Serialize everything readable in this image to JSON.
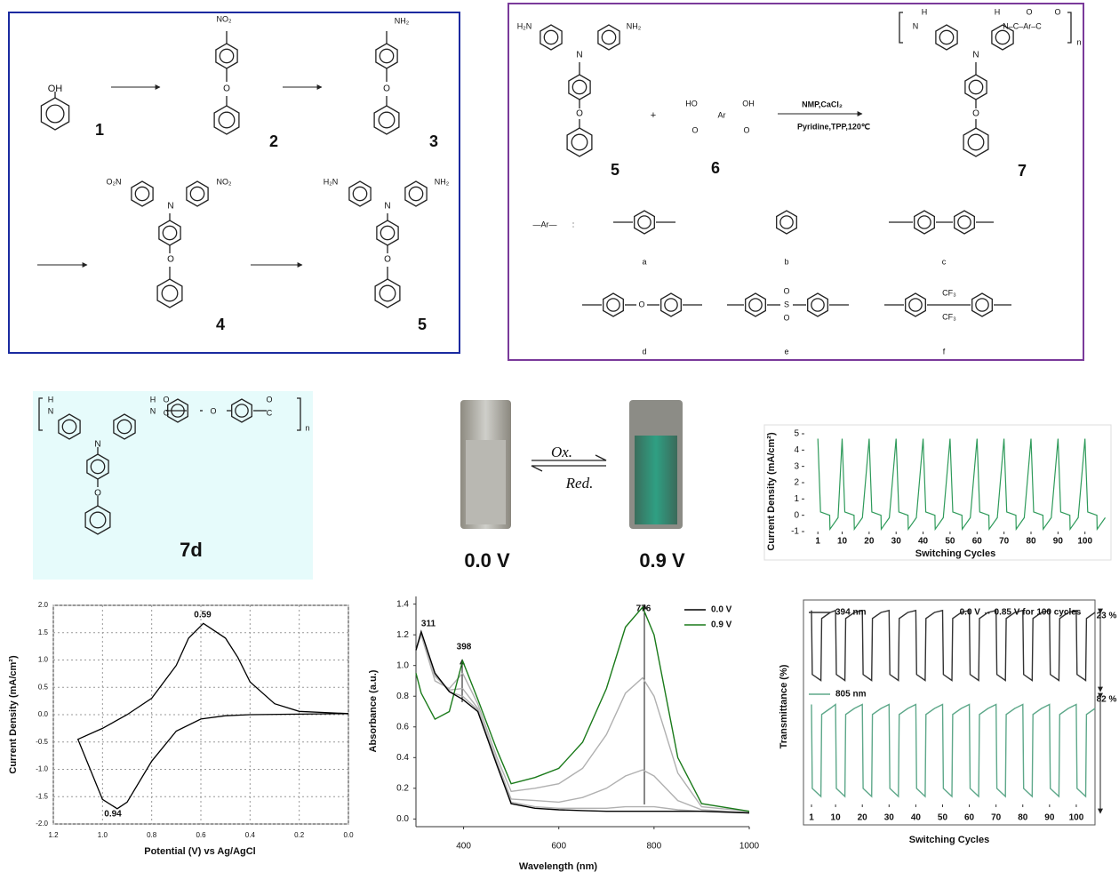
{
  "scheme_1": {
    "texts": [
      "OH",
      "1",
      "NO₂",
      "O",
      "2",
      "NH₂",
      "O",
      "3",
      "O₂N",
      "NO₂",
      "N",
      "O",
      "4",
      "H₂N",
      "NH₂",
      "N",
      "O",
      "5"
    ]
  },
  "scheme_2": {
    "texts": [
      "H₂N",
      "NH₂",
      "N",
      "O",
      "5",
      "+",
      "HO",
      "OH",
      "Ar",
      "O",
      "O",
      "6",
      "NMP,CaCl₂",
      "Pyridine,TPP,120℃",
      "H",
      "N",
      "H",
      "O",
      "O",
      "N–C–Ar–C",
      "n",
      "N",
      "O",
      "7",
      "—Ar—",
      ":",
      "a",
      "b",
      "c",
      "O",
      "d",
      "O",
      "S",
      "O",
      "e",
      "CF₃",
      "CF₃",
      "f"
    ]
  },
  "scheme_7d": {
    "texts": [
      "H",
      "N",
      "H",
      "N",
      "O",
      "C",
      "O",
      "O",
      "C",
      "n",
      "N",
      "O",
      "7d"
    ]
  },
  "photos": {
    "texts": [
      "Ox.",
      "Red.",
      "0.0 V",
      "0.9 V"
    ]
  },
  "chart_data": [
    {
      "type": "line",
      "y_label": "Current Density (mA/cm²)",
      "x_label": "Switching Cycles",
      "x": [
        1,
        2,
        5.4,
        5.5,
        8.5,
        10,
        11,
        14.4,
        14.5,
        17.5,
        20,
        21,
        24.4,
        24.5,
        27.5,
        30,
        31,
        34.4,
        34.5,
        37.5,
        40,
        41,
        44.4,
        44.5,
        47.5,
        50,
        51,
        54.4,
        54.5,
        57.5,
        60,
        61,
        64.4,
        64.5,
        67.5,
        70,
        71,
        74.4,
        74.5,
        77.5,
        80,
        81,
        84.4,
        84.5,
        87.5,
        90,
        91,
        94.4,
        94.5,
        97.5,
        100,
        101,
        104.4,
        104.5,
        107.5
      ],
      "series": [
        {
          "color": "#2e9a5a",
          "values": [
            4.7,
            0.2,
            0,
            -0.85,
            -0.15,
            4.7,
            0.2,
            0,
            -0.85,
            -0.15,
            4.7,
            0.2,
            0,
            -0.85,
            -0.15,
            4.7,
            0.2,
            0,
            -0.85,
            -0.15,
            4.7,
            0.2,
            0,
            -0.85,
            -0.15,
            4.7,
            0.2,
            0,
            -0.85,
            -0.15,
            4.7,
            0.2,
            0,
            -0.85,
            -0.15,
            4.7,
            0.2,
            0,
            -0.85,
            -0.15,
            4.7,
            0.2,
            0,
            -0.85,
            -0.15,
            4.7,
            0.2,
            0,
            -0.85,
            -0.15,
            4.7,
            0.2,
            0,
            -0.85,
            -0.15
          ]
        }
      ],
      "xlim": [
        -4,
        108
      ],
      "ylim": [
        -1,
        5
      ],
      "xticks": [
        1,
        10,
        20,
        30,
        40,
        50,
        60,
        70,
        80,
        90,
        100
      ],
      "yticks": [
        -1,
        0,
        1,
        2,
        3,
        4,
        5
      ],
      "grid": false
    },
    {
      "type": "line",
      "y_label": "Current Density (mA/cm²)",
      "x_label": "Potential (V) vs Ag/AgCl",
      "x": [
        0.0,
        0.2,
        0.4,
        0.5,
        0.6,
        0.7,
        0.8,
        0.9,
        0.94,
        1.0,
        1.05,
        1.1,
        1.0,
        0.9,
        0.8,
        0.7,
        0.65,
        0.59,
        0.5,
        0.45,
        0.4,
        0.3,
        0.2,
        0.0
      ],
      "series": [
        {
          "color": "#000000",
          "values": [
            0.02,
            0.01,
            0.0,
            -0.02,
            -0.08,
            -0.3,
            -0.85,
            -1.6,
            -1.72,
            -1.55,
            -1.0,
            -0.45,
            -0.25,
            0.0,
            0.3,
            0.9,
            1.4,
            1.67,
            1.4,
            1.05,
            0.6,
            0.2,
            0.06,
            0.02
          ]
        }
      ],
      "annotations": [
        "0.59",
        "0.94"
      ],
      "xlim": [
        1.2,
        0.0
      ],
      "ylim": [
        -2,
        2
      ],
      "xticks": [
        1.2,
        {
          "value": 1,
          "label": "1.0"
        },
        0.8,
        0.6,
        0.4,
        0.2,
        {
          "value": 0,
          "label": "0.0"
        }
      ],
      "yticks": [
        {
          "value": 2,
          "label": "2.0"
        },
        1.5,
        {
          "value": 1,
          "label": "1.0"
        },
        0.5,
        {
          "value": 0,
          "label": "0.0"
        },
        -0.5,
        {
          "value": -1,
          "label": "-1.0"
        },
        -1.5,
        {
          "value": -2,
          "label": "-2.0"
        }
      ],
      "grid": true
    },
    {
      "type": "line",
      "y_label": "Absorbance (a.u.)",
      "x_label": "Wavelength (nm)",
      "x": [
        300,
        311,
        340,
        370,
        398,
        430,
        470,
        500,
        550,
        600,
        650,
        700,
        740,
        776,
        800,
        850,
        900,
        1000
      ],
      "series": [
        {
          "name": "0.0 V",
          "color": "#000000",
          "values": [
            1.1,
            1.22,
            0.95,
            0.83,
            0.78,
            0.7,
            0.35,
            0.1,
            0.07,
            0.06,
            0.055,
            0.05,
            0.05,
            0.05,
            0.05,
            0.05,
            0.05,
            0.04
          ]
        },
        {
          "name": "0.9 V",
          "color": "#1a7a1a",
          "values": [
            0.95,
            0.82,
            0.65,
            0.7,
            1.03,
            0.78,
            0.45,
            0.23,
            0.27,
            0.33,
            0.5,
            0.85,
            1.25,
            1.38,
            1.2,
            0.4,
            0.1,
            0.05
          ]
        },
        {
          "color": "#b0b0b0",
          "values": [
            1.1,
            1.2,
            0.9,
            0.85,
            0.95,
            0.75,
            0.4,
            0.18,
            0.2,
            0.23,
            0.33,
            0.55,
            0.82,
            0.92,
            0.8,
            0.3,
            0.08,
            0.05
          ]
        },
        {
          "color": "#b0b0b0",
          "values": [
            1.1,
            1.21,
            0.93,
            0.84,
            0.85,
            0.72,
            0.37,
            0.13,
            0.12,
            0.11,
            0.14,
            0.2,
            0.28,
            0.32,
            0.28,
            0.12,
            0.06,
            0.04
          ]
        },
        {
          "color": "#b0b0b0",
          "values": [
            1.1,
            1.22,
            0.94,
            0.83,
            0.8,
            0.71,
            0.36,
            0.11,
            0.08,
            0.07,
            0.07,
            0.07,
            0.08,
            0.08,
            0.08,
            0.06,
            0.05,
            0.04
          ]
        }
      ],
      "annotations": [
        "311",
        "398",
        "776"
      ],
      "legend": "upper right",
      "xlim": [
        300,
        1000
      ],
      "ylim": [
        -0.05,
        1.45
      ],
      "xticks": [
        400,
        600,
        800,
        1000
      ],
      "yticks": [
        {
          "value": 0,
          "label": "0.0"
        },
        0.2,
        0.4,
        0.6,
        0.8,
        {
          "value": 1,
          "label": "1.0"
        },
        1.2,
        1.4
      ],
      "grid": false
    },
    {
      "type": "line",
      "y_label": "Transmittance (%)",
      "x_label": "Switching Cycles",
      "x": [
        1,
        1.3,
        4.5,
        4.8,
        8,
        10,
        10.3,
        13.5,
        13.8,
        17,
        20,
        20.3,
        23.5,
        23.8,
        27,
        30,
        30.3,
        33.5,
        33.8,
        37,
        40,
        40.3,
        43.5,
        43.8,
        47,
        50,
        50.3,
        53.5,
        53.8,
        57,
        60,
        60.3,
        63.5,
        63.8,
        67,
        70,
        70.3,
        73.5,
        73.8,
        77,
        80,
        80.3,
        83.5,
        83.8,
        87,
        90,
        90.3,
        93.5,
        93.8,
        97,
        100,
        100.3,
        103.5,
        103.8,
        107
      ],
      "series": [
        {
          "name": "394 nm",
          "color": "#333333",
          "values": [
            97,
            65,
            62,
            93,
            96,
            97,
            65,
            62,
            93,
            96,
            97,
            65,
            62,
            93,
            96,
            97,
            65,
            62,
            93,
            96,
            97,
            65,
            62,
            93,
            96,
            97,
            65,
            62,
            93,
            96,
            97,
            65,
            62,
            93,
            96,
            97,
            65,
            62,
            93,
            96,
            97,
            65,
            62,
            93,
            96,
            97,
            65,
            62,
            93,
            96,
            97,
            65,
            62,
            93,
            96
          ]
        },
        {
          "name": "805 nm",
          "color": "#5ea88a",
          "values": [
            50,
            8,
            4,
            45,
            48,
            50,
            8,
            4,
            45,
            48,
            50,
            8,
            4,
            45,
            48,
            50,
            8,
            4,
            45,
            48,
            50,
            8,
            4,
            45,
            48,
            50,
            8,
            4,
            45,
            48,
            50,
            8,
            4,
            45,
            48,
            50,
            8,
            4,
            45,
            48,
            50,
            8,
            4,
            45,
            48,
            50,
            8,
            4,
            45,
            48,
            50,
            8,
            4,
            45,
            48
          ]
        }
      ],
      "annotations": [
        "0.0 V ↔ 0.85 V for 100 cycles",
        "23 %",
        "82 %"
      ],
      "legend": "upper left",
      "xlim": [
        -2,
        107
      ],
      "ylim": [
        0,
        100
      ],
      "xticks": [
        1,
        10,
        20,
        30,
        40,
        50,
        60,
        70,
        80,
        90,
        100
      ],
      "grid": false
    }
  ]
}
